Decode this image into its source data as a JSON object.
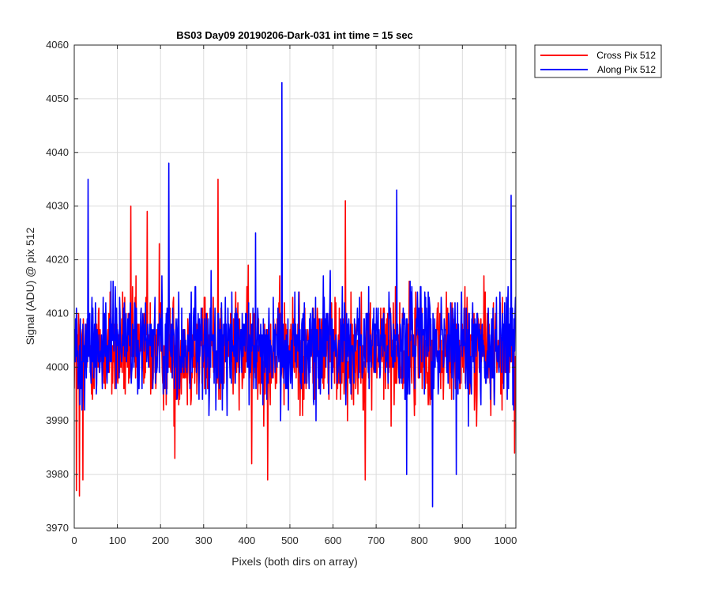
{
  "chart_data": {
    "type": "line",
    "title": "BS03 Day09 20190206-Dark-031 int time = 15 sec",
    "xlabel": "Pixels (both dirs on array)",
    "ylabel": "Signal (ADU) @ pix 512",
    "xlim": [
      0,
      1024
    ],
    "ylim": [
      3970,
      4060
    ],
    "xticks": [
      0,
      100,
      200,
      300,
      400,
      500,
      600,
      700,
      800,
      900,
      1000
    ],
    "yticks": [
      3970,
      3980,
      3990,
      4000,
      4010,
      4020,
      4030,
      4040,
      4050,
      4060
    ],
    "grid": true,
    "legend_position": "outside-top-right",
    "series_summary": [
      {
        "name": "Cross Pix 512",
        "color": "#ff0000",
        "n_points": 1024,
        "mean": 4003,
        "min": 3976,
        "max": 4035
      },
      {
        "name": "Along Pix 512",
        "color": "#0000ff",
        "n_points": 1024,
        "mean": 4004,
        "min": 3974,
        "max": 4053
      }
    ],
    "series": [
      {
        "name": "Cross Pix 512",
        "color": "#ff0000",
        "notable_points": [
          {
            "x": 5,
            "y": 3977
          },
          {
            "x": 12,
            "y": 3976
          },
          {
            "x": 20,
            "y": 3979
          },
          {
            "x": 131,
            "y": 4030
          },
          {
            "x": 169,
            "y": 4029
          },
          {
            "x": 197,
            "y": 4023
          },
          {
            "x": 233,
            "y": 3983
          },
          {
            "x": 333,
            "y": 4035
          },
          {
            "x": 411,
            "y": 3982
          },
          {
            "x": 448,
            "y": 3979
          },
          {
            "x": 628,
            "y": 4031
          },
          {
            "x": 674,
            "y": 3979
          },
          {
            "x": 1020,
            "y": 3984
          }
        ]
      },
      {
        "name": "Along Pix 512",
        "color": "#0000ff",
        "notable_points": [
          {
            "x": 32,
            "y": 4035
          },
          {
            "x": 219,
            "y": 4038
          },
          {
            "x": 420,
            "y": 4025
          },
          {
            "x": 481,
            "y": 4053
          },
          {
            "x": 747,
            "y": 4033
          },
          {
            "x": 770,
            "y": 3980
          },
          {
            "x": 830,
            "y": 3974
          },
          {
            "x": 885,
            "y": 3980
          },
          {
            "x": 1012,
            "y": 4032
          }
        ]
      }
    ]
  }
}
